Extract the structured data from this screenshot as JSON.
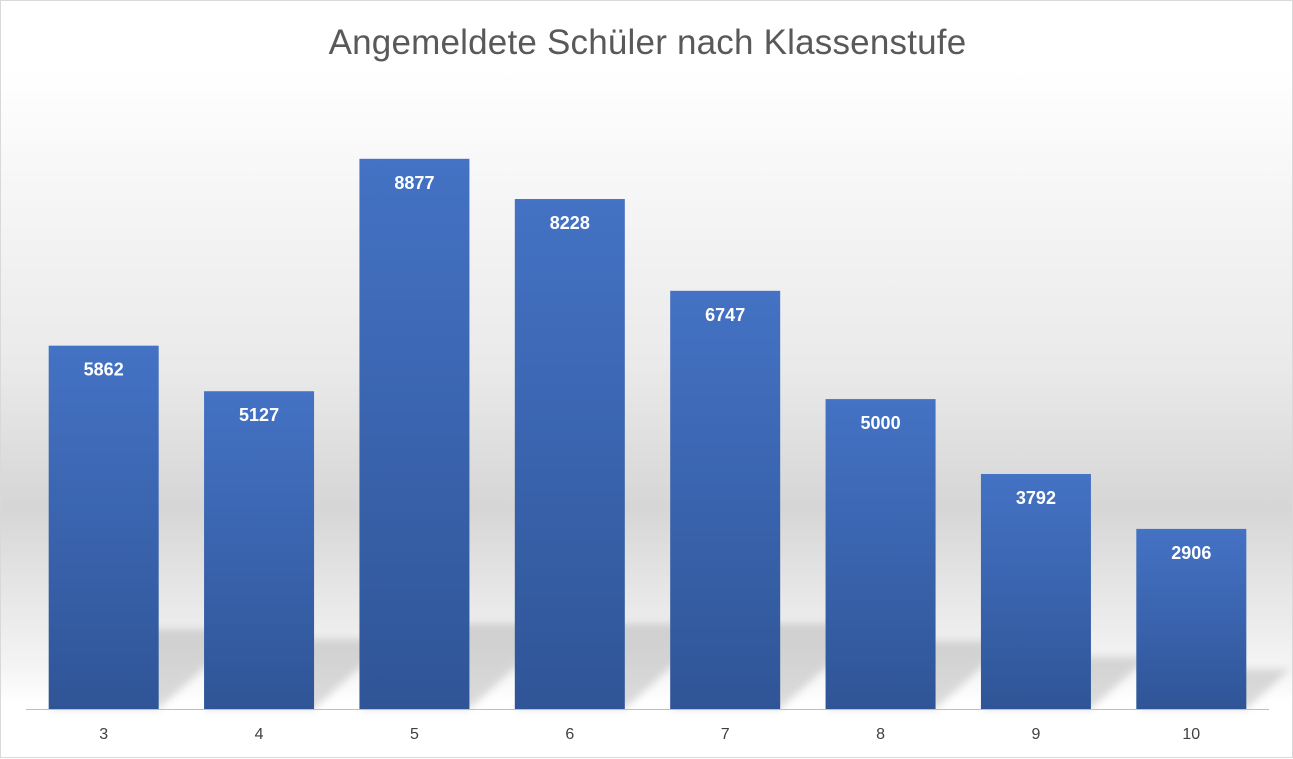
{
  "chart_data": {
    "type": "bar",
    "title": "Angemeldete Schüler nach Klassenstufe",
    "xlabel": "",
    "ylabel": "",
    "categories": [
      "3",
      "4",
      "5",
      "6",
      "7",
      "8",
      "9",
      "10"
    ],
    "values": [
      5862,
      5127,
      8877,
      8228,
      6747,
      5000,
      3792,
      2906
    ],
    "data_labels": [
      "5862",
      "5127",
      "8877",
      "8228",
      "6747",
      "5000",
      "3792",
      "2906"
    ],
    "ylim": [
      0,
      10000
    ],
    "grid": false,
    "legend": "none",
    "colors": {
      "bar_top": "#4472C4",
      "bar_bottom": "#2F5597",
      "axis": "#BFBFBF",
      "title": "#595959"
    }
  }
}
